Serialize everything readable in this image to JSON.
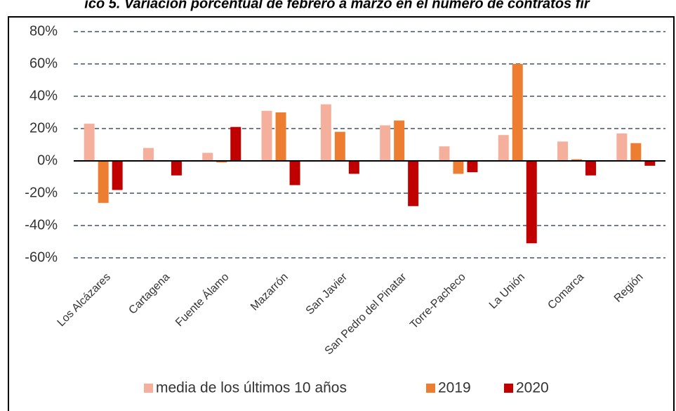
{
  "chart_data": {
    "type": "bar",
    "title": "ico 5. Variación porcentual de febrero a marzo en el número de contratos fir",
    "categories": [
      "Los Alcázares",
      "Cartagena",
      "Fuente Álamo",
      "Mazarrón",
      "San Javier",
      "San Pedro del Pinatar",
      "Torre-Pacheco",
      "La Unión",
      "Comarca",
      "Región"
    ],
    "series": [
      {
        "name": "media de los últimos 10 años",
        "color": "#f4b09c",
        "values": [
          23,
          8,
          5,
          31,
          35,
          22,
          9,
          16,
          12,
          17
        ]
      },
      {
        "name": "2019",
        "color": "#ed7d31",
        "values": [
          -26,
          0,
          -1,
          30,
          18,
          25,
          -8,
          60,
          1,
          11
        ]
      },
      {
        "name": "2020",
        "color": "#c00000",
        "values": [
          -18,
          -9,
          21,
          -15,
          -8,
          -28,
          -7,
          -51,
          -9,
          -3
        ]
      }
    ],
    "ylim": [
      -60,
      80
    ],
    "yticks": [
      {
        "value": -60,
        "label": "-60%"
      },
      {
        "value": -40,
        "label": "-40%"
      },
      {
        "value": -20,
        "label": "-20%"
      },
      {
        "value": 0,
        "label": "0%"
      },
      {
        "value": 20,
        "label": "20%"
      },
      {
        "value": 40,
        "label": "40%"
      },
      {
        "value": 60,
        "label": "60%"
      },
      {
        "value": 80,
        "label": "80%"
      }
    ],
    "grid": true,
    "legend": "bottom"
  }
}
